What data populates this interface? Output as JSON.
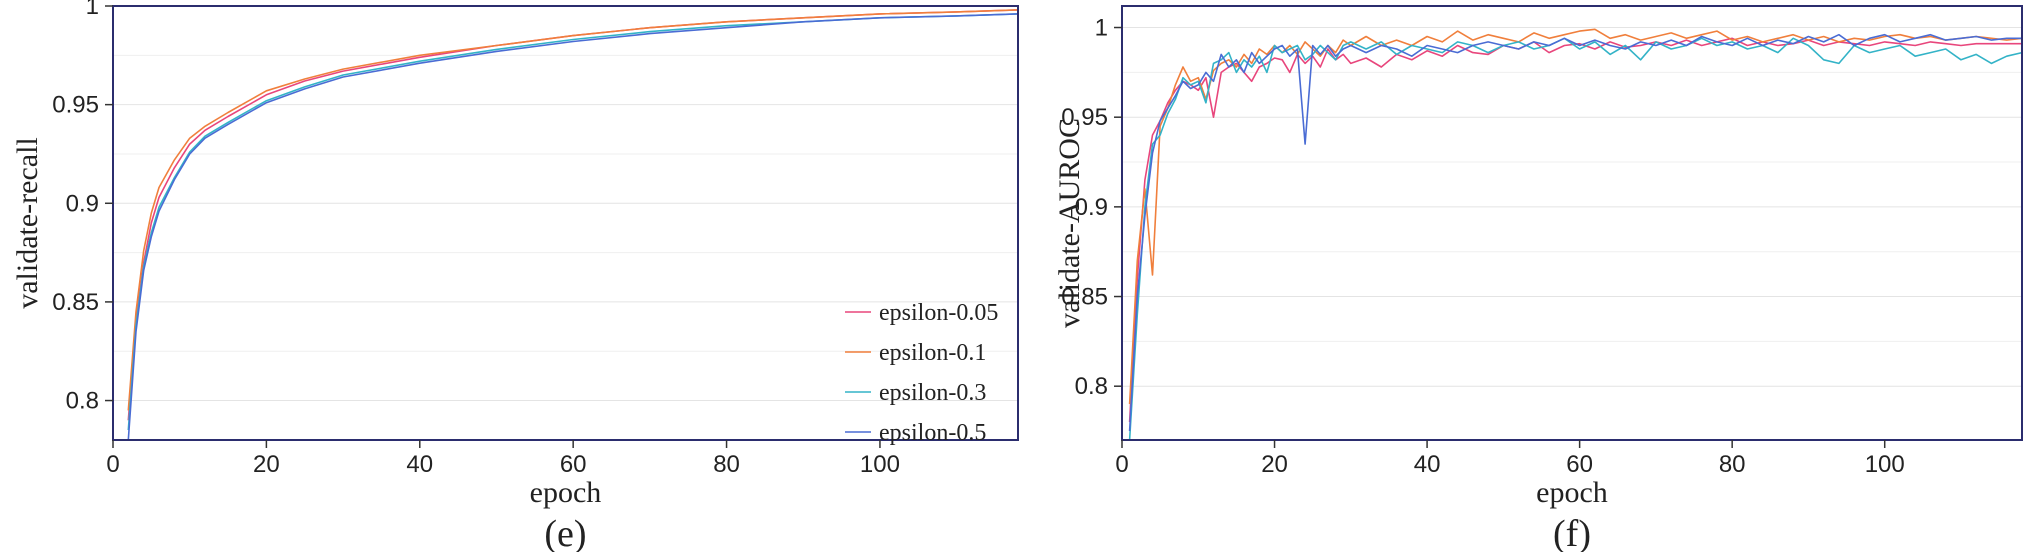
{
  "chart_data": [
    {
      "type": "line",
      "caption": "(e)",
      "xlabel": "epoch",
      "ylabel": "validate-recall",
      "xlim": [
        0,
        118
      ],
      "ylim": [
        0.78,
        1.0
      ],
      "xticks": [
        "0",
        "20",
        "40",
        "60",
        "80",
        "100"
      ],
      "yticks": [
        "0.8",
        "0.85",
        "0.9",
        "0.95",
        "1"
      ],
      "legend_position": "bottom-right",
      "series": [
        {
          "name": "epsilon-0.05",
          "color": "#e8467c",
          "x": [
            2,
            3,
            4,
            5,
            6,
            8,
            10,
            12,
            15,
            20,
            25,
            30,
            40,
            50,
            60,
            70,
            80,
            90,
            100,
            110,
            118
          ],
          "values": [
            0.79,
            0.84,
            0.87,
            0.89,
            0.903,
            0.918,
            0.93,
            0.937,
            0.944,
            0.955,
            0.962,
            0.967,
            0.974,
            0.98,
            0.985,
            0.989,
            0.992,
            0.994,
            0.996,
            0.997,
            0.998
          ]
        },
        {
          "name": "epsilon-0.1",
          "color": "#f07f3c",
          "x": [
            2,
            3,
            4,
            5,
            6,
            8,
            10,
            12,
            15,
            20,
            25,
            30,
            40,
            50,
            60,
            70,
            80,
            90,
            100,
            110,
            118
          ],
          "values": [
            0.795,
            0.845,
            0.876,
            0.895,
            0.908,
            0.922,
            0.933,
            0.939,
            0.946,
            0.957,
            0.963,
            0.968,
            0.975,
            0.98,
            0.985,
            0.989,
            0.992,
            0.994,
            0.996,
            0.997,
            0.998
          ]
        },
        {
          "name": "epsilon-0.3",
          "color": "#33b3c7",
          "x": [
            2,
            3,
            4,
            5,
            6,
            8,
            10,
            12,
            15,
            20,
            25,
            30,
            40,
            50,
            60,
            70,
            80,
            90,
            100,
            110,
            118
          ],
          "values": [
            0.785,
            0.838,
            0.868,
            0.885,
            0.898,
            0.913,
            0.926,
            0.934,
            0.941,
            0.952,
            0.959,
            0.965,
            0.972,
            0.978,
            0.983,
            0.987,
            0.99,
            0.992,
            0.994,
            0.995,
            0.996
          ]
        },
        {
          "name": "epsilon-0.5",
          "color": "#4a6cd4",
          "x": [
            2,
            3,
            4,
            5,
            6,
            8,
            10,
            12,
            15,
            20,
            25,
            30,
            40,
            50,
            60,
            70,
            80,
            90,
            100,
            110,
            118
          ],
          "values": [
            0.78,
            0.835,
            0.866,
            0.883,
            0.896,
            0.912,
            0.925,
            0.933,
            0.94,
            0.951,
            0.958,
            0.964,
            0.971,
            0.977,
            0.982,
            0.986,
            0.989,
            0.992,
            0.994,
            0.995,
            0.996
          ]
        }
      ]
    },
    {
      "type": "line",
      "caption": "(f)",
      "xlabel": "epoch",
      "ylabel": "validate-AUROC",
      "xlim": [
        0,
        118
      ],
      "ylim": [
        0.77,
        1.012
      ],
      "xticks": [
        "0",
        "20",
        "40",
        "60",
        "80",
        "100"
      ],
      "yticks": [
        "0.8",
        "0.85",
        "0.9",
        "0.95",
        "1"
      ],
      "series": [
        {
          "name": "epsilon-0.05",
          "color": "#e8467c",
          "x": [
            1,
            2,
            3,
            4,
            5,
            6,
            7,
            8,
            9,
            10,
            11,
            12,
            13,
            14,
            15,
            16,
            17,
            18,
            19,
            20,
            21,
            22,
            23,
            24,
            25,
            26,
            27,
            28,
            29,
            30,
            32,
            34,
            36,
            38,
            40,
            42,
            44,
            46,
            48,
            50,
            52,
            54,
            56,
            58,
            60,
            62,
            64,
            66,
            68,
            70,
            72,
            74,
            76,
            78,
            80,
            82,
            84,
            86,
            88,
            90,
            92,
            94,
            96,
            98,
            100,
            102,
            104,
            106,
            108,
            110,
            112,
            114,
            116,
            118
          ],
          "values": [
            0.78,
            0.86,
            0.915,
            0.94,
            0.948,
            0.958,
            0.965,
            0.97,
            0.968,
            0.965,
            0.972,
            0.95,
            0.975,
            0.978,
            0.98,
            0.975,
            0.97,
            0.978,
            0.98,
            0.983,
            0.982,
            0.975,
            0.985,
            0.98,
            0.984,
            0.978,
            0.988,
            0.982,
            0.985,
            0.98,
            0.983,
            0.978,
            0.985,
            0.982,
            0.987,
            0.984,
            0.99,
            0.986,
            0.985,
            0.99,
            0.988,
            0.992,
            0.986,
            0.99,
            0.991,
            0.988,
            0.992,
            0.989,
            0.99,
            0.992,
            0.99,
            0.993,
            0.99,
            0.992,
            0.994,
            0.99,
            0.992,
            0.99,
            0.991,
            0.993,
            0.99,
            0.992,
            0.991,
            0.99,
            0.992,
            0.991,
            0.99,
            0.992,
            0.991,
            0.99,
            0.991,
            0.991,
            0.991,
            0.991
          ]
        },
        {
          "name": "epsilon-0.1",
          "color": "#f07f3c",
          "x": [
            1,
            2,
            3,
            4,
            5,
            6,
            7,
            8,
            9,
            10,
            11,
            12,
            13,
            14,
            15,
            16,
            17,
            18,
            19,
            20,
            21,
            22,
            23,
            24,
            25,
            26,
            27,
            28,
            29,
            30,
            32,
            34,
            36,
            38,
            40,
            42,
            44,
            46,
            48,
            50,
            52,
            54,
            56,
            58,
            60,
            62,
            64,
            66,
            68,
            70,
            72,
            74,
            76,
            78,
            80,
            82,
            84,
            86,
            88,
            90,
            92,
            94,
            96,
            98,
            100,
            102,
            104,
            106,
            108,
            110,
            112,
            114,
            116,
            118
          ],
          "values": [
            0.79,
            0.87,
            0.91,
            0.862,
            0.945,
            0.955,
            0.968,
            0.978,
            0.97,
            0.972,
            0.96,
            0.976,
            0.98,
            0.982,
            0.978,
            0.985,
            0.98,
            0.988,
            0.985,
            0.99,
            0.986,
            0.99,
            0.985,
            0.992,
            0.988,
            0.984,
            0.99,
            0.986,
            0.993,
            0.99,
            0.995,
            0.99,
            0.993,
            0.99,
            0.995,
            0.992,
            0.998,
            0.993,
            0.996,
            0.994,
            0.992,
            0.997,
            0.994,
            0.996,
            0.998,
            0.999,
            0.994,
            0.996,
            0.993,
            0.995,
            0.997,
            0.994,
            0.996,
            0.998,
            0.993,
            0.995,
            0.992,
            0.994,
            0.996,
            0.993,
            0.995,
            0.992,
            0.994,
            0.993,
            0.995,
            0.996,
            0.994,
            0.995,
            0.993,
            0.994,
            0.995,
            0.994,
            0.993,
            0.994
          ]
        },
        {
          "name": "epsilon-0.3",
          "color": "#33b3c7",
          "x": [
            1,
            2,
            3,
            4,
            5,
            6,
            7,
            8,
            9,
            10,
            11,
            12,
            13,
            14,
            15,
            16,
            17,
            18,
            19,
            20,
            21,
            22,
            23,
            24,
            25,
            26,
            27,
            28,
            29,
            30,
            32,
            34,
            36,
            38,
            40,
            42,
            44,
            46,
            48,
            50,
            52,
            54,
            56,
            58,
            60,
            62,
            64,
            66,
            68,
            70,
            72,
            74,
            76,
            78,
            80,
            82,
            84,
            86,
            88,
            90,
            92,
            94,
            96,
            98,
            100,
            102,
            104,
            106,
            108,
            110,
            112,
            114,
            116,
            118
          ],
          "values": [
            0.77,
            0.84,
            0.9,
            0.935,
            0.94,
            0.952,
            0.96,
            0.972,
            0.968,
            0.97,
            0.958,
            0.98,
            0.982,
            0.986,
            0.975,
            0.982,
            0.978,
            0.984,
            0.975,
            0.99,
            0.986,
            0.988,
            0.99,
            0.982,
            0.985,
            0.99,
            0.986,
            0.982,
            0.99,
            0.992,
            0.988,
            0.992,
            0.985,
            0.99,
            0.988,
            0.986,
            0.992,
            0.99,
            0.986,
            0.99,
            0.992,
            0.988,
            0.99,
            0.994,
            0.988,
            0.992,
            0.985,
            0.99,
            0.982,
            0.992,
            0.988,
            0.99,
            0.994,
            0.99,
            0.992,
            0.988,
            0.99,
            0.986,
            0.994,
            0.99,
            0.982,
            0.98,
            0.99,
            0.986,
            0.988,
            0.99,
            0.984,
            0.986,
            0.988,
            0.982,
            0.985,
            0.98,
            0.984,
            0.986
          ]
        },
        {
          "name": "epsilon-0.5",
          "color": "#4a6cd4",
          "x": [
            1,
            2,
            3,
            4,
            5,
            6,
            7,
            8,
            9,
            10,
            11,
            12,
            13,
            14,
            15,
            16,
            17,
            18,
            19,
            20,
            21,
            22,
            23,
            24,
            25,
            26,
            27,
            28,
            29,
            30,
            32,
            34,
            36,
            38,
            40,
            42,
            44,
            46,
            48,
            50,
            52,
            54,
            56,
            58,
            60,
            62,
            64,
            66,
            68,
            70,
            72,
            74,
            76,
            78,
            80,
            82,
            84,
            86,
            88,
            90,
            92,
            94,
            96,
            98,
            100,
            102,
            104,
            106,
            108,
            110,
            112,
            114,
            116,
            118
          ],
          "values": [
            0.775,
            0.85,
            0.895,
            0.93,
            0.948,
            0.955,
            0.962,
            0.97,
            0.966,
            0.968,
            0.975,
            0.97,
            0.985,
            0.978,
            0.982,
            0.975,
            0.986,
            0.98,
            0.984,
            0.988,
            0.99,
            0.984,
            0.988,
            0.935,
            0.99,
            0.985,
            0.99,
            0.984,
            0.988,
            0.99,
            0.986,
            0.99,
            0.988,
            0.984,
            0.99,
            0.988,
            0.986,
            0.99,
            0.992,
            0.99,
            0.988,
            0.992,
            0.99,
            0.994,
            0.99,
            0.993,
            0.99,
            0.988,
            0.992,
            0.99,
            0.993,
            0.99,
            0.995,
            0.992,
            0.99,
            0.994,
            0.99,
            0.993,
            0.991,
            0.995,
            0.992,
            0.996,
            0.99,
            0.994,
            0.996,
            0.992,
            0.994,
            0.996,
            0.993,
            0.994,
            0.995,
            0.993,
            0.994,
            0.994
          ]
        }
      ]
    }
  ]
}
